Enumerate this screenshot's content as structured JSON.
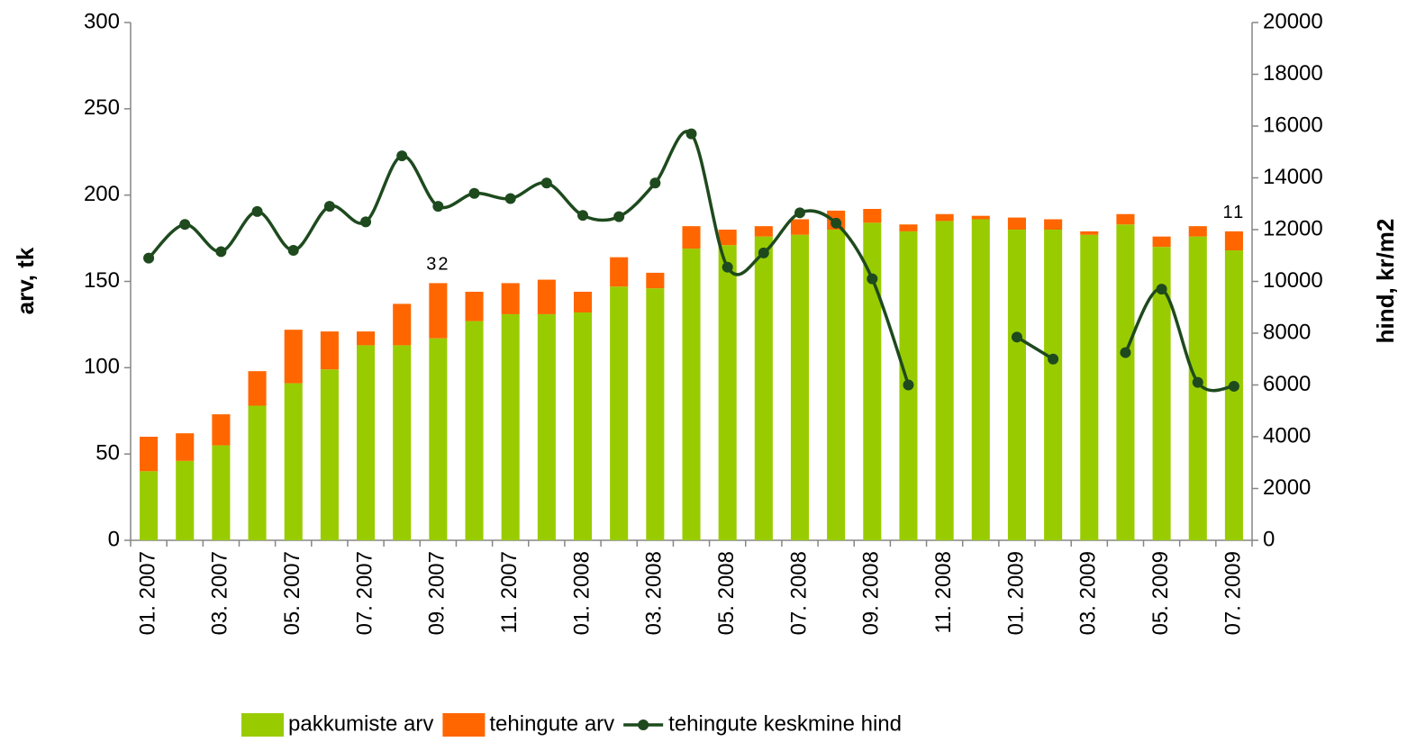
{
  "chart_data": {
    "type": "bar",
    "categories": [
      "01. 2007",
      null,
      "03. 2007",
      null,
      "05. 2007",
      null,
      "07. 2007",
      null,
      "09. 2007",
      null,
      "11. 2007",
      null,
      "01. 2008",
      null,
      "03. 2008",
      null,
      "05. 2008",
      null,
      "07. 2008",
      null,
      "09. 2008",
      null,
      "11. 2008",
      null,
      "01. 2009",
      null,
      "03. 2009",
      null,
      "05. 2009",
      null,
      "07. 2009"
    ],
    "stacked": true,
    "series": [
      {
        "name": "pakkumiste arv",
        "color": "#99cc00",
        "type": "bar",
        "values": [
          40,
          46,
          55,
          78,
          91,
          99,
          113,
          113,
          117,
          127,
          131,
          131,
          132,
          147,
          146,
          169,
          171,
          176,
          177,
          180,
          184,
          179,
          185,
          186,
          180,
          180,
          177,
          183,
          170,
          176,
          168
        ]
      },
      {
        "name": "tehingute arv",
        "color": "#ff6600",
        "type": "bar",
        "values": [
          20,
          16,
          18,
          20,
          31,
          22,
          8,
          24,
          32,
          17,
          18,
          20,
          12,
          17,
          9,
          13,
          9,
          6,
          9,
          11,
          8,
          4,
          4,
          2,
          7,
          6,
          2,
          6,
          6,
          6,
          11
        ],
        "value_labels": [
          null,
          null,
          null,
          null,
          null,
          null,
          null,
          null,
          "32",
          null,
          null,
          null,
          null,
          null,
          null,
          null,
          null,
          null,
          null,
          null,
          null,
          null,
          null,
          null,
          null,
          null,
          null,
          null,
          null,
          null,
          "11"
        ]
      },
      {
        "name": "tehingute keskmine hind",
        "color": "#1e4a1e",
        "type": "line",
        "axis": "y2",
        "values": [
          10900,
          12200,
          11150,
          12700,
          11200,
          12900,
          12300,
          14850,
          12900,
          13400,
          13200,
          13800,
          12550,
          12500,
          13800,
          15700,
          10550,
          11100,
          12650,
          12250,
          10100,
          6000,
          null,
          null,
          7850,
          7000,
          null,
          7250,
          9700,
          6100,
          5950
        ]
      }
    ],
    "ylabel": "arv, tk",
    "y2label": "hind, kr/m2",
    "ylim": [
      0,
      300
    ],
    "yticks": [
      0,
      50,
      100,
      150,
      200,
      250,
      300
    ],
    "y2lim": [
      0,
      20000
    ],
    "y2ticks": [
      0,
      2000,
      4000,
      6000,
      8000,
      10000,
      12000,
      14000,
      16000,
      18000,
      20000
    ],
    "grid": false,
    "legend": "bottom"
  }
}
